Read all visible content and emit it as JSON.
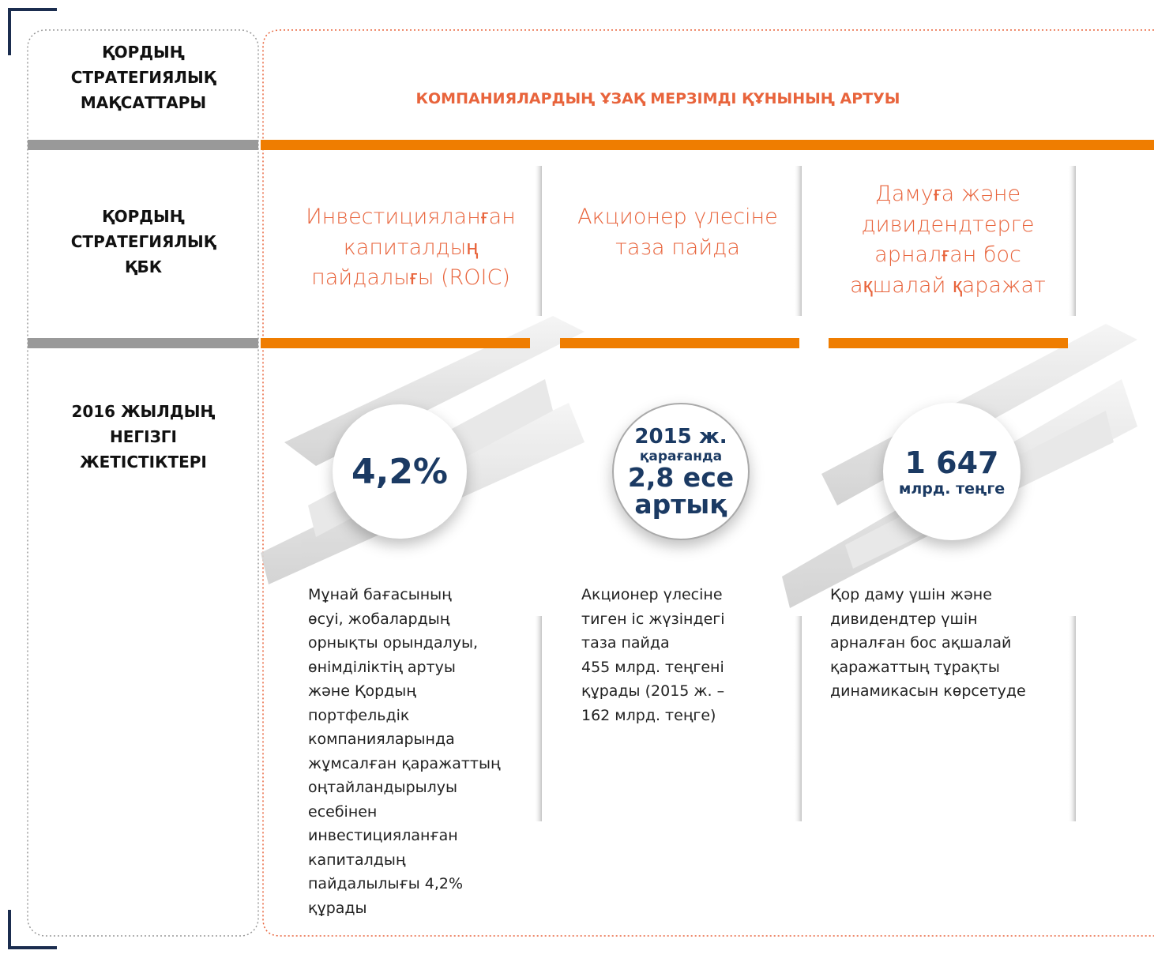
{
  "row_labels": [
    [
      "ҚОРДЫҢ",
      "СТРАТЕГИЯЛЫҚ",
      "МАҚСАТТАРЫ"
    ],
    [
      "ҚОРДЫҢ",
      "СТРАТЕГИЯЛЫҚ",
      "ҚБК"
    ],
    [
      "2016 ЖЫЛДЫҢ",
      "НЕГІЗГІ",
      "ЖЕТІСТІКТЕРІ"
    ]
  ],
  "goal": "КОМПАНИЯЛАРДЫҢ ҰЗАҚ МЕРЗІМДІ ҚҰНЫНЫҢ АРТУЫ",
  "columns": [
    {
      "kpi": [
        "Инвестицияланған",
        "капиталдың",
        "пайдалығы (ROIC)"
      ],
      "badge": [
        "4,2%"
      ],
      "description": [
        "Мұнай бағасының",
        "өсуі, жобалардың",
        "орнықты орындалуы,",
        "өнімділіктің артуы",
        "және Қордың",
        "портфельдік",
        "компанияларында",
        "жұмсалған қаражаттың",
        "оңтайландырылуы",
        "есебінен",
        "инвестицияланған",
        "капиталдың",
        "пайдалылығы 4,2%",
        "құрады"
      ]
    },
    {
      "kpi": [
        "Акционер үлесіне",
        "таза пайда"
      ],
      "badge": [
        "2015 ж.",
        "қарағанда",
        "2,8 есе",
        "артық"
      ],
      "description": [
        "Акционер үлесіне",
        "тиген іс жүзіндегі",
        "таза пайда",
        "455 млрд. теңгені",
        "құрады (2015 ж. –",
        "162 млрд. теңге)"
      ]
    },
    {
      "kpi": [
        "Дамуға және",
        "дивидендтерге",
        "арналған бос",
        "ақшалай қаражат"
      ],
      "badge": [
        "1 647",
        "млрд. теңге"
      ],
      "description": [
        "Қор даму үшін және",
        "дивидендтер үшін",
        "арналған бос ақшалай",
        "қаражаттың тұрақты",
        "динамикасын көрсетуде"
      ]
    }
  ]
}
